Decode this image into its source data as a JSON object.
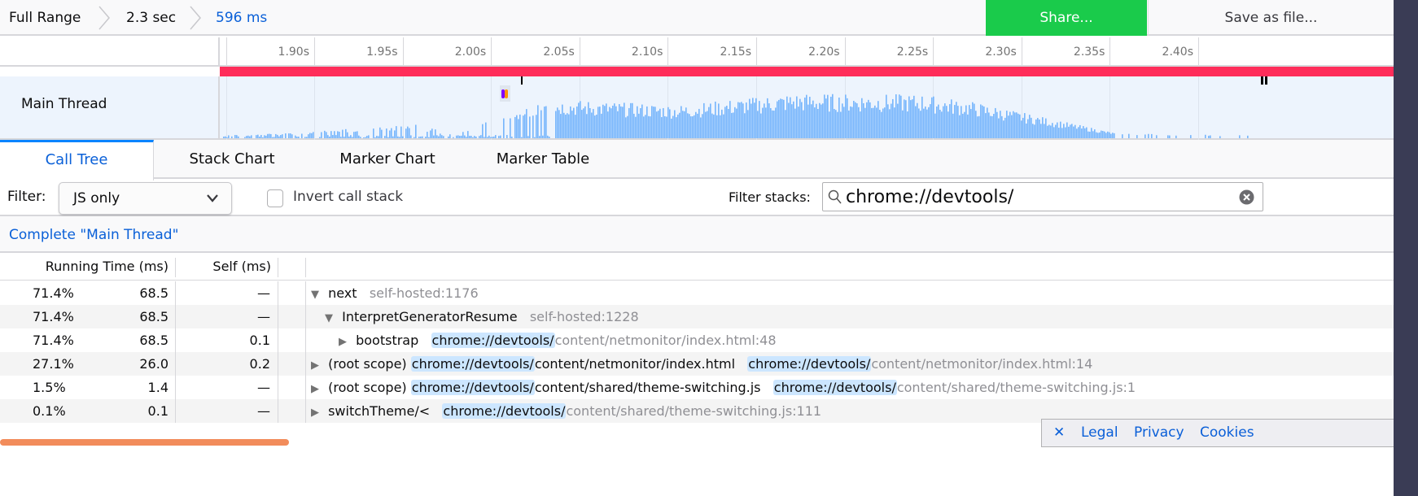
{
  "breadcrumbs": {
    "items": [
      "Full Range",
      "2.3 sec",
      "596 ms"
    ]
  },
  "toolbar": {
    "share_label": "Share...",
    "save_label": "Save as file..."
  },
  "timeline": {
    "ticks": [
      "1.90s",
      "1.95s",
      "2.00s",
      "2.05s",
      "2.10s",
      "2.15s",
      "2.20s",
      "2.25s",
      "2.30s",
      "2.35s",
      "2.40s"
    ]
  },
  "track": {
    "label": "Main Thread"
  },
  "tabs": [
    {
      "label": "Call Tree",
      "selected": true
    },
    {
      "label": "Stack Chart"
    },
    {
      "label": "Marker Chart"
    },
    {
      "label": "Marker Table"
    }
  ],
  "filter": {
    "label": "Filter:",
    "value": "JS only",
    "invert_label": "Invert call stack",
    "invert_checked": false,
    "search_label": "Filter stacks:",
    "search_value": "chrome://devtools/"
  },
  "transform_breadcrumb": "Complete \"Main Thread\"",
  "table": {
    "headers": {
      "running": "Running Time (ms)",
      "self": "Self (ms)"
    },
    "rows": [
      {
        "pct": "71.4%",
        "ms": "68.5",
        "self": "—",
        "depth": 0,
        "open": true,
        "name": "next",
        "origin": {
          "match": "",
          "rest": "self-hosted:1176"
        }
      },
      {
        "pct": "71.4%",
        "ms": "68.5",
        "self": "—",
        "depth": 1,
        "open": true,
        "name": "InterpretGeneratorResume",
        "origin": {
          "match": "",
          "rest": "self-hosted:1228"
        }
      },
      {
        "pct": "71.4%",
        "ms": "68.5",
        "self": "0.1",
        "depth": 2,
        "open": false,
        "name": "bootstrap",
        "origin": {
          "match": "chrome://devtools/",
          "rest": "content/netmonitor/index.html:48"
        }
      },
      {
        "pct": "27.1%",
        "ms": "26.0",
        "self": "0.2",
        "depth": 0,
        "open": false,
        "name": "(root scope)",
        "name_match": "chrome://devtools/",
        "name_rest": "content/netmonitor/index.html",
        "origin": {
          "match": "chrome://devtools/",
          "rest": "content/netmonitor/index.html:14"
        }
      },
      {
        "pct": "1.5%",
        "ms": "1.4",
        "self": "—",
        "depth": 0,
        "open": false,
        "name": "(root scope)",
        "name_match": "chrome://devtools/",
        "name_rest": "content/shared/theme-switching.js",
        "origin": {
          "match": "chrome://devtools/",
          "rest": "content/shared/theme-switching.js:1"
        }
      },
      {
        "pct": "0.1%",
        "ms": "0.1",
        "self": "—",
        "depth": 0,
        "open": false,
        "name": "switchTheme/<",
        "origin": {
          "match": "chrome://devtools/",
          "rest": "content/shared/theme-switching.js:111"
        }
      }
    ]
  },
  "footer": {
    "links": [
      "Legal",
      "Privacy",
      "Cookies"
    ]
  },
  "colors": {
    "accent": "#0a84ff",
    "share": "#1acb4b",
    "tracing": "#ff2d5a",
    "graph": "#76b5fc"
  }
}
